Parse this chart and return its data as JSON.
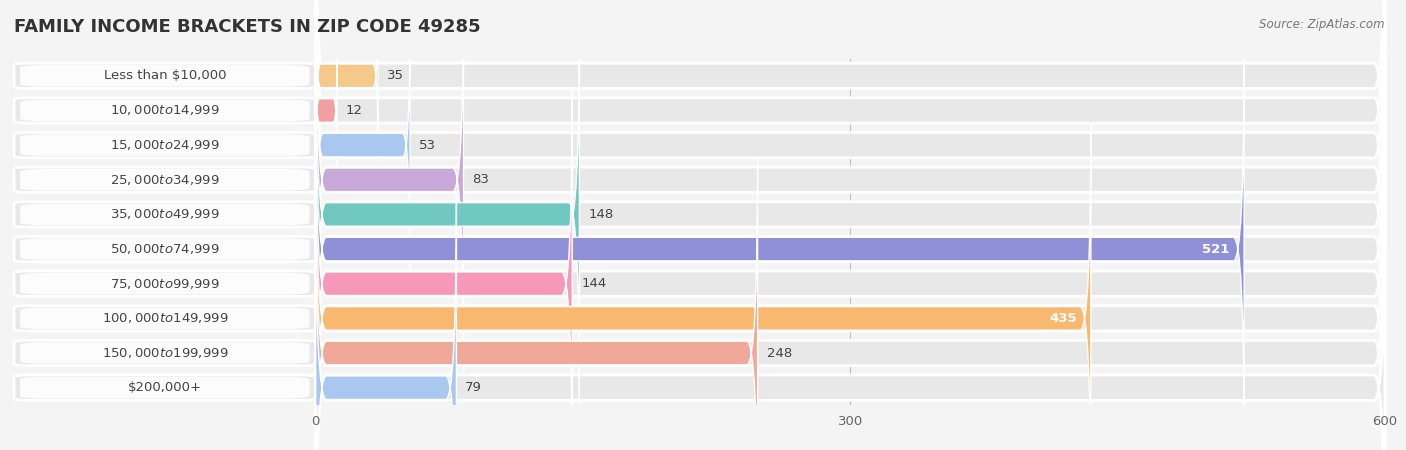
{
  "title": "FAMILY INCOME BRACKETS IN ZIP CODE 49285",
  "source": "Source: ZipAtlas.com",
  "categories": [
    "Less than $10,000",
    "$10,000 to $14,999",
    "$15,000 to $24,999",
    "$25,000 to $34,999",
    "$35,000 to $49,999",
    "$50,000 to $74,999",
    "$75,000 to $99,999",
    "$100,000 to $149,999",
    "$150,000 to $199,999",
    "$200,000+"
  ],
  "values": [
    35,
    12,
    53,
    83,
    148,
    521,
    144,
    435,
    248,
    79
  ],
  "bar_colors": [
    "#F5C98A",
    "#F0A0A0",
    "#A8C8F0",
    "#C8A8D8",
    "#70C8C0",
    "#9090D8",
    "#F898B8",
    "#F8B870",
    "#F0A898",
    "#A8C8F0"
  ],
  "value_inside": [
    false,
    false,
    false,
    false,
    false,
    true,
    false,
    true,
    false,
    false
  ],
  "xlim": [
    0,
    600
  ],
  "xticks": [
    0,
    300,
    600
  ],
  "bg_color": "#f4f4f4",
  "bar_bg_color": "#e0e0e0",
  "row_bg_color": "#ececec",
  "title_fontsize": 13,
  "label_fontsize": 9.5,
  "value_fontsize": 9.5,
  "source_fontsize": 8.5
}
